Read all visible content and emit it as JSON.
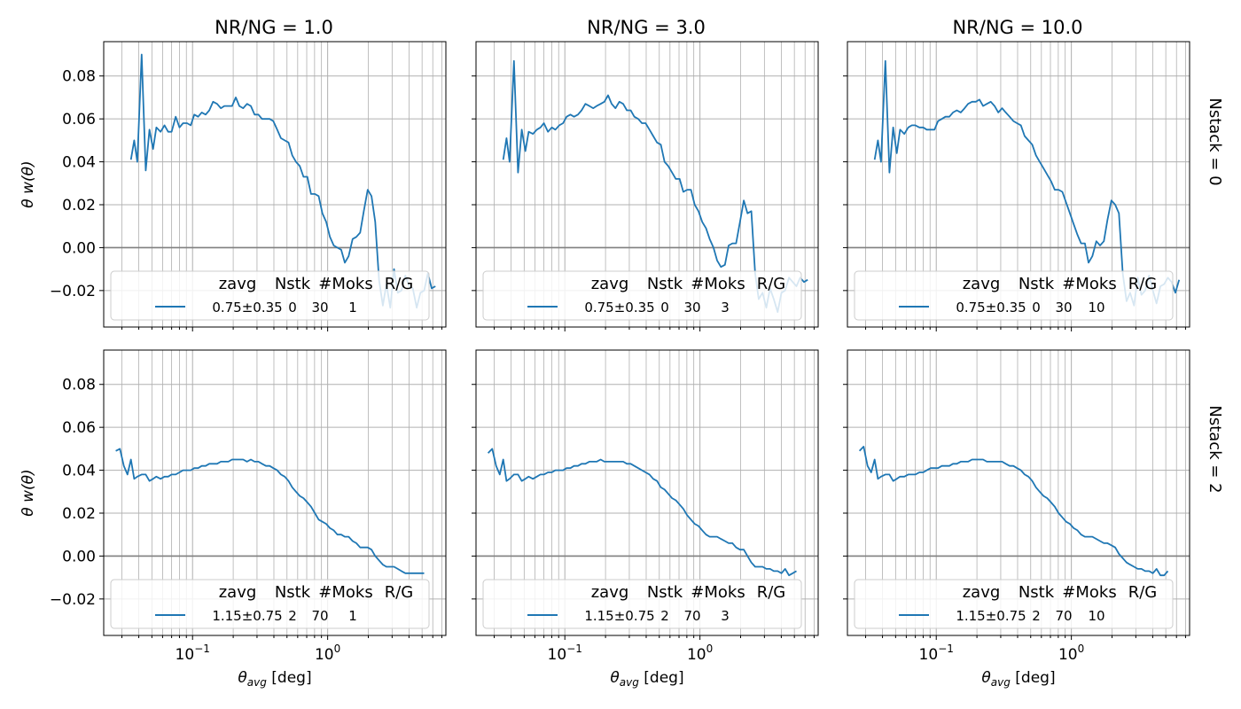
{
  "figure": {
    "column_titles": [
      "NR/NG = 1.0",
      "NR/NG = 3.0",
      "NR/NG = 10.0"
    ],
    "row_titles": [
      "Nstack = 0",
      "Nstack = 2"
    ],
    "ylabel": "θ w(θ)",
    "xlabel_main": "θ",
    "xlabel_sub": "avg",
    "xlabel_unit": " [deg]",
    "x_tick_labels": [
      {
        "base": "10",
        "exp": "−1",
        "value": 0.1
      },
      {
        "base": "10",
        "exp": "0",
        "value": 1.0
      }
    ],
    "y_tick_labels": [
      "0.08",
      "0.06",
      "0.04",
      "0.02",
      "0.00",
      "−0.02"
    ],
    "legend_headers": [
      "zavg",
      "Nstk",
      "#Moks",
      "R/G"
    ]
  },
  "colors": {
    "line": "#1f77b4",
    "grid": "#b0b0b0",
    "zero_line": "#808080",
    "legend_border": "#cccccc"
  },
  "chart_data": [
    {
      "type": "line",
      "id": "r0c0",
      "row": 0,
      "col": 0,
      "xscale": "log",
      "xlim": [
        0.022,
        7.5
      ],
      "ylim": [
        -0.037,
        0.096
      ],
      "grid": true,
      "legend": {
        "placement": "lower-center",
        "zavg": "0.75±0.35",
        "nstk": "0",
        "moks": "30",
        "rg": "1"
      },
      "x": [
        0.035,
        0.037,
        0.039,
        0.042,
        0.045,
        0.048,
        0.051,
        0.054,
        0.058,
        0.062,
        0.066,
        0.07,
        0.075,
        0.08,
        0.085,
        0.091,
        0.097,
        0.103,
        0.11,
        0.117,
        0.125,
        0.133,
        0.142,
        0.152,
        0.162,
        0.172,
        0.184,
        0.196,
        0.209,
        0.222,
        0.237,
        0.253,
        0.27,
        0.288,
        0.307,
        0.327,
        0.349,
        0.372,
        0.396,
        0.423,
        0.451,
        0.481,
        0.513,
        0.547,
        0.583,
        0.622,
        0.663,
        0.707,
        0.754,
        0.804,
        0.858,
        0.914,
        0.975,
        1.04,
        1.11,
        1.18,
        1.26,
        1.34,
        1.43,
        1.53,
        1.63,
        1.74,
        1.85,
        1.98,
        2.11,
        2.25,
        2.4,
        2.56,
        2.72,
        2.91,
        3.1,
        3.3,
        3.52,
        3.76,
        4.01,
        4.27,
        4.56,
        4.86,
        5.18,
        5.52,
        5.89,
        6.28
      ],
      "y": [
        0.041,
        0.05,
        0.04,
        0.09,
        0.036,
        0.055,
        0.046,
        0.056,
        0.054,
        0.057,
        0.054,
        0.054,
        0.061,
        0.056,
        0.058,
        0.058,
        0.057,
        0.062,
        0.061,
        0.063,
        0.062,
        0.064,
        0.068,
        0.067,
        0.065,
        0.066,
        0.066,
        0.066,
        0.07,
        0.066,
        0.065,
        0.067,
        0.066,
        0.062,
        0.062,
        0.06,
        0.06,
        0.06,
        0.059,
        0.055,
        0.051,
        0.05,
        0.049,
        0.043,
        0.04,
        0.038,
        0.033,
        0.033,
        0.025,
        0.025,
        0.024,
        0.016,
        0.012,
        0.005,
        0.001,
        0.0,
        -0.001,
        -0.007,
        -0.004,
        0.004,
        0.005,
        0.007,
        0.017,
        0.027,
        0.024,
        0.012,
        -0.015,
        -0.027,
        -0.017,
        -0.028,
        -0.01,
        -0.021,
        -0.02,
        -0.013,
        -0.018,
        -0.019,
        -0.028,
        -0.021,
        -0.02,
        -0.012,
        -0.019,
        -0.018
      ]
    },
    {
      "type": "line",
      "id": "r0c1",
      "row": 0,
      "col": 1,
      "xscale": "log",
      "xlim": [
        0.022,
        7.5
      ],
      "ylim": [
        -0.037,
        0.096
      ],
      "grid": true,
      "legend": {
        "placement": "lower-center",
        "zavg": "0.75±0.35",
        "nstk": "0",
        "moks": "30",
        "rg": "3"
      },
      "x": [
        0.035,
        0.037,
        0.039,
        0.042,
        0.045,
        0.048,
        0.051,
        0.054,
        0.058,
        0.062,
        0.066,
        0.07,
        0.075,
        0.08,
        0.085,
        0.091,
        0.097,
        0.103,
        0.11,
        0.117,
        0.125,
        0.133,
        0.142,
        0.152,
        0.162,
        0.172,
        0.184,
        0.196,
        0.209,
        0.222,
        0.237,
        0.253,
        0.27,
        0.288,
        0.307,
        0.327,
        0.349,
        0.372,
        0.396,
        0.423,
        0.451,
        0.481,
        0.513,
        0.547,
        0.583,
        0.622,
        0.663,
        0.707,
        0.754,
        0.804,
        0.858,
        0.914,
        0.975,
        1.04,
        1.11,
        1.18,
        1.26,
        1.34,
        1.43,
        1.53,
        1.63,
        1.74,
        1.85,
        1.98,
        2.11,
        2.25,
        2.4,
        2.56,
        2.72,
        2.91,
        3.1,
        3.3,
        3.52,
        3.76,
        4.01,
        4.27,
        4.56,
        4.86,
        5.18,
        5.52,
        5.89,
        6.28
      ],
      "y": [
        0.041,
        0.051,
        0.04,
        0.087,
        0.035,
        0.055,
        0.045,
        0.054,
        0.053,
        0.055,
        0.056,
        0.058,
        0.054,
        0.056,
        0.055,
        0.057,
        0.058,
        0.061,
        0.062,
        0.061,
        0.062,
        0.064,
        0.067,
        0.066,
        0.065,
        0.066,
        0.067,
        0.068,
        0.071,
        0.067,
        0.065,
        0.068,
        0.067,
        0.064,
        0.064,
        0.061,
        0.06,
        0.058,
        0.058,
        0.055,
        0.052,
        0.049,
        0.048,
        0.04,
        0.038,
        0.035,
        0.032,
        0.032,
        0.026,
        0.027,
        0.027,
        0.02,
        0.017,
        0.012,
        0.009,
        0.004,
        0.0,
        -0.006,
        -0.009,
        -0.008,
        0.001,
        0.002,
        0.002,
        0.012,
        0.022,
        0.016,
        0.017,
        -0.012,
        -0.024,
        -0.021,
        -0.028,
        -0.019,
        -0.024,
        -0.03,
        -0.021,
        -0.02,
        -0.014,
        -0.016,
        -0.018,
        -0.014,
        -0.016,
        -0.015
      ]
    },
    {
      "type": "line",
      "id": "r0c2",
      "row": 0,
      "col": 2,
      "xscale": "log",
      "xlim": [
        0.022,
        7.5
      ],
      "ylim": [
        -0.037,
        0.096
      ],
      "grid": true,
      "legend": {
        "placement": "lower-center",
        "zavg": "0.75±0.35",
        "nstk": "0",
        "moks": "30",
        "rg": "10"
      },
      "x": [
        0.035,
        0.037,
        0.039,
        0.042,
        0.045,
        0.048,
        0.051,
        0.054,
        0.058,
        0.062,
        0.066,
        0.07,
        0.075,
        0.08,
        0.085,
        0.091,
        0.097,
        0.103,
        0.11,
        0.117,
        0.125,
        0.133,
        0.142,
        0.152,
        0.162,
        0.172,
        0.184,
        0.196,
        0.209,
        0.222,
        0.237,
        0.253,
        0.27,
        0.288,
        0.307,
        0.327,
        0.349,
        0.372,
        0.396,
        0.423,
        0.451,
        0.481,
        0.513,
        0.547,
        0.583,
        0.622,
        0.663,
        0.707,
        0.754,
        0.804,
        0.858,
        0.914,
        0.975,
        1.04,
        1.11,
        1.18,
        1.26,
        1.34,
        1.43,
        1.53,
        1.63,
        1.74,
        1.85,
        1.98,
        2.11,
        2.25,
        2.4,
        2.56,
        2.72,
        2.91,
        3.1,
        3.3,
        3.52,
        3.76,
        4.01,
        4.27,
        4.56,
        4.86,
        5.18,
        5.52,
        5.89,
        6.28
      ],
      "y": [
        0.041,
        0.05,
        0.04,
        0.087,
        0.035,
        0.056,
        0.044,
        0.055,
        0.053,
        0.056,
        0.057,
        0.057,
        0.056,
        0.056,
        0.055,
        0.055,
        0.055,
        0.059,
        0.06,
        0.061,
        0.061,
        0.063,
        0.064,
        0.063,
        0.065,
        0.067,
        0.068,
        0.068,
        0.069,
        0.066,
        0.067,
        0.068,
        0.066,
        0.063,
        0.065,
        0.063,
        0.061,
        0.059,
        0.058,
        0.057,
        0.052,
        0.05,
        0.048,
        0.043,
        0.04,
        0.037,
        0.034,
        0.031,
        0.027,
        0.027,
        0.026,
        0.021,
        0.016,
        0.011,
        0.006,
        0.002,
        0.002,
        -0.007,
        -0.004,
        0.003,
        0.001,
        0.003,
        0.013,
        0.022,
        0.02,
        0.016,
        -0.012,
        -0.025,
        -0.021,
        -0.027,
        -0.014,
        -0.022,
        -0.02,
        -0.013,
        -0.02,
        -0.026,
        -0.018,
        -0.017,
        -0.014,
        -0.016,
        -0.021,
        -0.015
      ]
    },
    {
      "type": "line",
      "id": "r1c0",
      "row": 1,
      "col": 0,
      "xscale": "log",
      "xlim": [
        0.022,
        7.5
      ],
      "ylim": [
        -0.037,
        0.096
      ],
      "grid": true,
      "legend": {
        "placement": "lower-center",
        "zavg": "1.15±0.75",
        "nstk": "2",
        "moks": "70",
        "rg": "1"
      },
      "x": [
        0.027,
        0.029,
        0.031,
        0.033,
        0.035,
        0.037,
        0.039,
        0.042,
        0.045,
        0.048,
        0.051,
        0.054,
        0.058,
        0.062,
        0.066,
        0.07,
        0.075,
        0.08,
        0.085,
        0.091,
        0.097,
        0.103,
        0.11,
        0.117,
        0.125,
        0.133,
        0.142,
        0.152,
        0.162,
        0.172,
        0.184,
        0.196,
        0.209,
        0.222,
        0.237,
        0.253,
        0.27,
        0.288,
        0.307,
        0.327,
        0.349,
        0.372,
        0.396,
        0.423,
        0.451,
        0.481,
        0.513,
        0.547,
        0.583,
        0.622,
        0.663,
        0.707,
        0.754,
        0.804,
        0.858,
        0.914,
        0.975,
        1.04,
        1.11,
        1.18,
        1.26,
        1.34,
        1.43,
        1.53,
        1.63,
        1.74,
        1.85,
        1.98,
        2.11,
        2.25,
        2.4,
        2.56,
        2.72,
        2.91,
        3.1,
        3.3,
        3.52,
        3.76,
        4.01,
        4.27,
        4.56,
        4.86,
        5.18
      ],
      "y": [
        0.049,
        0.05,
        0.042,
        0.038,
        0.045,
        0.036,
        0.037,
        0.038,
        0.038,
        0.035,
        0.036,
        0.037,
        0.036,
        0.037,
        0.037,
        0.038,
        0.038,
        0.039,
        0.04,
        0.04,
        0.04,
        0.041,
        0.041,
        0.042,
        0.042,
        0.043,
        0.043,
        0.043,
        0.044,
        0.044,
        0.044,
        0.045,
        0.045,
        0.045,
        0.045,
        0.044,
        0.045,
        0.044,
        0.044,
        0.043,
        0.042,
        0.042,
        0.041,
        0.04,
        0.038,
        0.037,
        0.035,
        0.032,
        0.03,
        0.028,
        0.027,
        0.025,
        0.023,
        0.02,
        0.017,
        0.016,
        0.015,
        0.013,
        0.012,
        0.01,
        0.01,
        0.009,
        0.009,
        0.007,
        0.006,
        0.004,
        0.004,
        0.004,
        0.003,
        0.0,
        -0.002,
        -0.004,
        -0.005,
        -0.005,
        -0.005,
        -0.006,
        -0.007,
        -0.008,
        -0.008,
        -0.008,
        -0.008,
        -0.008,
        -0.008
      ]
    },
    {
      "type": "line",
      "id": "r1c1",
      "row": 1,
      "col": 1,
      "xscale": "log",
      "xlim": [
        0.022,
        7.5
      ],
      "ylim": [
        -0.037,
        0.096
      ],
      "grid": true,
      "legend": {
        "placement": "lower-center",
        "zavg": "1.15±0.75",
        "nstk": "2",
        "moks": "70",
        "rg": "3"
      },
      "x": [
        0.027,
        0.029,
        0.031,
        0.033,
        0.035,
        0.037,
        0.039,
        0.042,
        0.045,
        0.048,
        0.051,
        0.054,
        0.058,
        0.062,
        0.066,
        0.07,
        0.075,
        0.08,
        0.085,
        0.091,
        0.097,
        0.103,
        0.11,
        0.117,
        0.125,
        0.133,
        0.142,
        0.152,
        0.162,
        0.172,
        0.184,
        0.196,
        0.209,
        0.222,
        0.237,
        0.253,
        0.27,
        0.288,
        0.307,
        0.327,
        0.349,
        0.372,
        0.396,
        0.423,
        0.451,
        0.481,
        0.513,
        0.547,
        0.583,
        0.622,
        0.663,
        0.707,
        0.754,
        0.804,
        0.858,
        0.914,
        0.975,
        1.04,
        1.11,
        1.18,
        1.26,
        1.34,
        1.43,
        1.53,
        1.63,
        1.74,
        1.85,
        1.98,
        2.11,
        2.25,
        2.4,
        2.56,
        2.72,
        2.91,
        3.1,
        3.3,
        3.52,
        3.76,
        4.01,
        4.27,
        4.56,
        4.86,
        5.18
      ],
      "y": [
        0.048,
        0.05,
        0.042,
        0.038,
        0.045,
        0.035,
        0.036,
        0.038,
        0.038,
        0.035,
        0.036,
        0.037,
        0.036,
        0.037,
        0.038,
        0.038,
        0.039,
        0.039,
        0.04,
        0.04,
        0.04,
        0.041,
        0.041,
        0.042,
        0.042,
        0.043,
        0.043,
        0.044,
        0.044,
        0.044,
        0.045,
        0.044,
        0.044,
        0.044,
        0.044,
        0.044,
        0.044,
        0.043,
        0.043,
        0.042,
        0.041,
        0.04,
        0.039,
        0.038,
        0.036,
        0.035,
        0.032,
        0.031,
        0.029,
        0.027,
        0.026,
        0.024,
        0.022,
        0.019,
        0.017,
        0.015,
        0.014,
        0.012,
        0.01,
        0.009,
        0.009,
        0.009,
        0.008,
        0.007,
        0.006,
        0.006,
        0.004,
        0.003,
        0.003,
        0.0,
        -0.003,
        -0.005,
        -0.005,
        -0.005,
        -0.006,
        -0.006,
        -0.007,
        -0.007,
        -0.008,
        -0.006,
        -0.009,
        -0.008,
        -0.007
      ]
    },
    {
      "type": "line",
      "id": "r1c2",
      "row": 1,
      "col": 2,
      "xscale": "log",
      "xlim": [
        0.022,
        7.5
      ],
      "ylim": [
        -0.037,
        0.096
      ],
      "grid": true,
      "legend": {
        "placement": "lower-center",
        "zavg": "1.15±0.75",
        "nstk": "2",
        "moks": "70",
        "rg": "10"
      },
      "x": [
        0.027,
        0.029,
        0.031,
        0.033,
        0.035,
        0.037,
        0.039,
        0.042,
        0.045,
        0.048,
        0.051,
        0.054,
        0.058,
        0.062,
        0.066,
        0.07,
        0.075,
        0.08,
        0.085,
        0.091,
        0.097,
        0.103,
        0.11,
        0.117,
        0.125,
        0.133,
        0.142,
        0.152,
        0.162,
        0.172,
        0.184,
        0.196,
        0.209,
        0.222,
        0.237,
        0.253,
        0.27,
        0.288,
        0.307,
        0.327,
        0.349,
        0.372,
        0.396,
        0.423,
        0.451,
        0.481,
        0.513,
        0.547,
        0.583,
        0.622,
        0.663,
        0.707,
        0.754,
        0.804,
        0.858,
        0.914,
        0.975,
        1.04,
        1.11,
        1.18,
        1.26,
        1.34,
        1.43,
        1.53,
        1.63,
        1.74,
        1.85,
        1.98,
        2.11,
        2.25,
        2.4,
        2.56,
        2.72,
        2.91,
        3.1,
        3.3,
        3.52,
        3.76,
        4.01,
        4.27,
        4.56,
        4.86,
        5.18
      ],
      "y": [
        0.049,
        0.051,
        0.042,
        0.039,
        0.045,
        0.036,
        0.037,
        0.038,
        0.038,
        0.035,
        0.036,
        0.037,
        0.037,
        0.038,
        0.038,
        0.038,
        0.039,
        0.039,
        0.04,
        0.041,
        0.041,
        0.041,
        0.042,
        0.042,
        0.042,
        0.043,
        0.043,
        0.044,
        0.044,
        0.044,
        0.045,
        0.045,
        0.045,
        0.045,
        0.044,
        0.044,
        0.044,
        0.044,
        0.044,
        0.043,
        0.042,
        0.042,
        0.041,
        0.04,
        0.038,
        0.037,
        0.035,
        0.032,
        0.03,
        0.028,
        0.027,
        0.025,
        0.023,
        0.02,
        0.018,
        0.016,
        0.015,
        0.013,
        0.012,
        0.01,
        0.009,
        0.009,
        0.009,
        0.008,
        0.007,
        0.006,
        0.006,
        0.005,
        0.004,
        0.001,
        -0.001,
        -0.003,
        -0.004,
        -0.005,
        -0.006,
        -0.006,
        -0.007,
        -0.007,
        -0.008,
        -0.006,
        -0.009,
        -0.009,
        -0.007
      ]
    }
  ]
}
